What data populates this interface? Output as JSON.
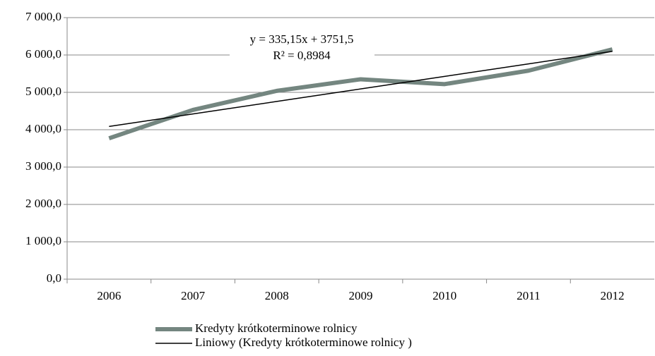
{
  "chart_data": {
    "type": "line",
    "categories": [
      "2006",
      "2007",
      "2008",
      "2009",
      "2010",
      "2011",
      "2012"
    ],
    "series": [
      {
        "name": "Kredyty krótkoterminowe rolnicy",
        "color": "#748680",
        "values": [
          3770,
          4530,
          5040,
          5350,
          5220,
          5580,
          6150
        ]
      },
      {
        "name": "Liniowy (Kredyty krótkoterminowe rolnicy )",
        "color": "#000000",
        "values": [
          4086.65,
          4421.8,
          4756.95,
          5092.1,
          5427.25,
          5762.4,
          6097.55
        ]
      }
    ],
    "annotations": [
      "y = 335,15x + 3751,5",
      "R² = 0,8984"
    ],
    "ylim": [
      0,
      7000
    ],
    "yticks": [
      {
        "value": 0,
        "label": "0,0"
      },
      {
        "value": 1000,
        "label": "1 000,0"
      },
      {
        "value": 2000,
        "label": "2 000,0"
      },
      {
        "value": 3000,
        "label": "3 000,0"
      },
      {
        "value": 4000,
        "label": "4 000,0"
      },
      {
        "value": 5000,
        "label": "5 000,0"
      },
      {
        "value": 6000,
        "label": "6 000,0"
      },
      {
        "value": 7000,
        "label": "7 000,0"
      }
    ],
    "grid": true,
    "legend": "bottom"
  }
}
